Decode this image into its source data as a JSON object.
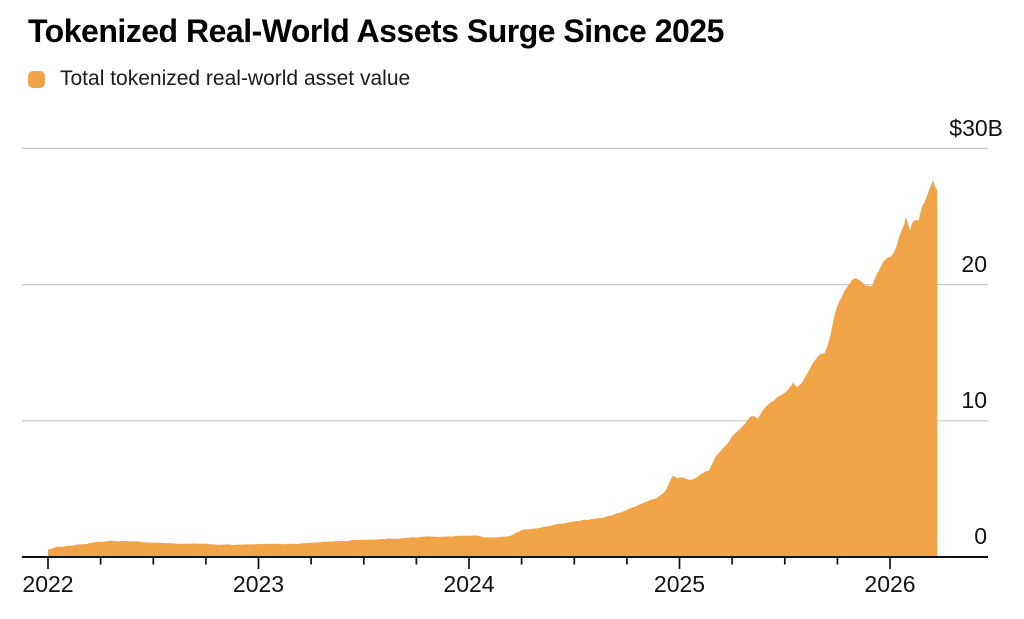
{
  "header": {
    "title": "Tokenized Real-World Assets Surge Since 2025"
  },
  "legend": {
    "label": "Total tokenized real-world asset value"
  },
  "colors": {
    "accent_orange": "#F1A347",
    "grid": "#C9C9C9",
    "axis": "#111111",
    "text": "#111111",
    "background": "#FFFFFF"
  },
  "chart_data": {
    "type": "area",
    "title": "Tokenized Real-World Assets Surge Since 2025",
    "unit": "$B",
    "ylabel": "",
    "xlabel": "",
    "ylim": [
      0,
      30
    ],
    "y_ticks": [
      0,
      10,
      20,
      30
    ],
    "y_tick_labels": [
      "0",
      "10",
      "20",
      "$30B"
    ],
    "x_tick_years": [
      "2022",
      "2023",
      "2024",
      "2025",
      "2026"
    ],
    "minor_x_ticks": "quarterly",
    "grid": "horizontal, behind series",
    "legend_position": "top-left",
    "series": [
      {
        "name": "Total tokenized real-world asset value",
        "color": "#F1A347",
        "x_unit": "decimal year",
        "points": [
          [
            2022.0,
            0.55
          ],
          [
            2022.04,
            0.72
          ],
          [
            2022.1,
            0.85
          ],
          [
            2022.18,
            1.0
          ],
          [
            2022.25,
            1.1
          ],
          [
            2022.3,
            1.15
          ],
          [
            2022.38,
            1.12
          ],
          [
            2022.46,
            1.07
          ],
          [
            2022.54,
            1.05
          ],
          [
            2022.62,
            1.0
          ],
          [
            2022.7,
            0.95
          ],
          [
            2022.79,
            0.9
          ],
          [
            2022.88,
            0.88
          ],
          [
            2022.96,
            0.88
          ],
          [
            2023.0,
            0.9
          ],
          [
            2023.08,
            0.92
          ],
          [
            2023.17,
            0.96
          ],
          [
            2023.25,
            1.05
          ],
          [
            2023.33,
            1.12
          ],
          [
            2023.42,
            1.2
          ],
          [
            2023.5,
            1.28
          ],
          [
            2023.58,
            1.35
          ],
          [
            2023.67,
            1.4
          ],
          [
            2023.75,
            1.46
          ],
          [
            2023.83,
            1.5
          ],
          [
            2023.92,
            1.55
          ],
          [
            2024.0,
            1.6
          ],
          [
            2024.08,
            1.46
          ],
          [
            2024.15,
            1.5
          ],
          [
            2024.2,
            1.62
          ],
          [
            2024.25,
            1.98
          ],
          [
            2024.34,
            2.15
          ],
          [
            2024.4,
            2.3
          ],
          [
            2024.48,
            2.5
          ],
          [
            2024.56,
            2.7
          ],
          [
            2024.65,
            2.92
          ],
          [
            2024.72,
            3.2
          ],
          [
            2024.81,
            3.8
          ],
          [
            2024.88,
            4.2
          ],
          [
            2024.93,
            4.7
          ],
          [
            2024.955,
            5.5
          ],
          [
            2024.97,
            5.9
          ],
          [
            2024.99,
            5.7
          ],
          [
            2025.01,
            5.75
          ],
          [
            2025.05,
            5.6
          ],
          [
            2025.1,
            6.0
          ],
          [
            2025.14,
            6.35
          ],
          [
            2025.17,
            7.4
          ],
          [
            2025.2,
            7.9
          ],
          [
            2025.24,
            8.6
          ],
          [
            2025.27,
            9.2
          ],
          [
            2025.31,
            9.8
          ],
          [
            2025.34,
            10.3
          ],
          [
            2025.37,
            10.05
          ],
          [
            2025.41,
            10.9
          ],
          [
            2025.44,
            11.4
          ],
          [
            2025.48,
            12.0
          ],
          [
            2025.52,
            12.5
          ],
          [
            2025.54,
            12.8
          ],
          [
            2025.56,
            12.4
          ],
          [
            2025.6,
            13.3
          ],
          [
            2025.63,
            14.3
          ],
          [
            2025.66,
            15.0
          ],
          [
            2025.69,
            15.2
          ],
          [
            2025.715,
            16.2
          ],
          [
            2025.74,
            18.0
          ],
          [
            2025.76,
            18.7
          ],
          [
            2025.8,
            19.8
          ],
          [
            2025.83,
            20.25
          ],
          [
            2025.86,
            20.2
          ],
          [
            2025.885,
            19.7
          ],
          [
            2025.915,
            20.0
          ],
          [
            2025.95,
            21.1
          ],
          [
            2025.975,
            21.5
          ],
          [
            2026.0,
            21.8
          ],
          [
            2026.03,
            22.6
          ],
          [
            2026.06,
            24.0
          ],
          [
            2026.075,
            24.8
          ],
          [
            2026.095,
            23.9
          ],
          [
            2026.115,
            24.6
          ],
          [
            2026.135,
            24.4
          ],
          [
            2026.155,
            25.5
          ],
          [
            2026.175,
            26.2
          ],
          [
            2026.205,
            27.3
          ],
          [
            2026.215,
            26.8
          ],
          [
            2026.225,
            26.9
          ]
        ]
      }
    ]
  }
}
